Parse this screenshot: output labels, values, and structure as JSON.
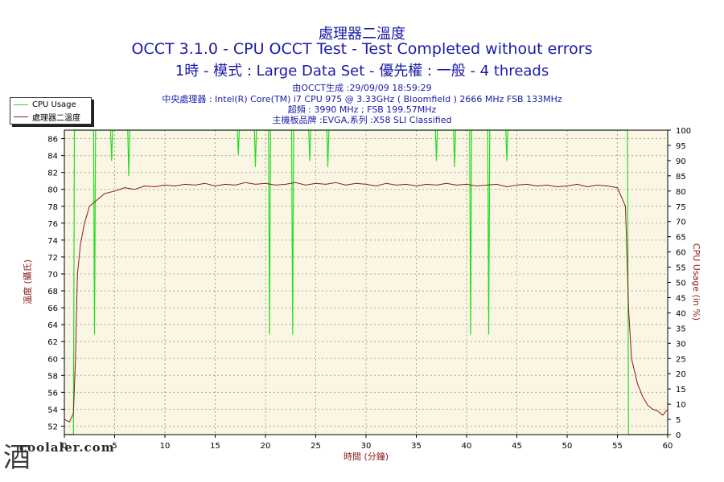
{
  "header": {
    "title_line1": "處理器二溫度",
    "title_line2": "OCCT 3.1.0 - CPU OCCT Test - Test Completed without errors",
    "title_line3": "1時 - 模式 : Large Data Set - 優先權 : 一般 - 4 threads",
    "info_line1": "由OCCT生成 :29/09/09 18:59:29",
    "info_line2": "中央處理器 : Intel(R) Core(TM) i7 CPU 975 @ 3.33GHz ( Bloomfield ) 2666 MHz FSB 133MHz",
    "info_line3": "超頻 : 3990 MHz ; FSB 199.57MHz",
    "info_line4": "主機板品牌 :EVGA,系列 :X58 SLI Classified"
  },
  "legend": {
    "items": [
      {
        "label": "CPU Usage",
        "color": "#22dd22"
      },
      {
        "label": "處理器二溫度",
        "color": "#8b1a1a"
      }
    ]
  },
  "watermark": {
    "glyph": "酒",
    "text": "coolaler.com"
  },
  "colors": {
    "plot_bg": "#fbf6e3",
    "temp": "#8b1a1a",
    "usage": "#22dd22",
    "grid": "#a8a890",
    "axis_text": "#000000",
    "axis_label": "#8b1a1a"
  },
  "chart_data": {
    "type": "line",
    "title": "處理器二溫度",
    "xlabel": "時間 (分鐘)",
    "ylabel_left": "溫度 (攝氏)",
    "ylabel_right": "CPU Usage (in %)",
    "xlim": [
      0,
      60
    ],
    "ylim_left": [
      51,
      87
    ],
    "ylim_right": [
      0,
      100
    ],
    "x_ticks": [
      0,
      5,
      10,
      15,
      20,
      25,
      30,
      35,
      40,
      45,
      50,
      55,
      60
    ],
    "y_ticks_left": [
      52,
      54,
      56,
      58,
      60,
      62,
      64,
      66,
      68,
      70,
      72,
      74,
      76,
      78,
      80,
      82,
      84,
      86
    ],
    "y_ticks_right": [
      0,
      5,
      10,
      15,
      20,
      25,
      30,
      35,
      40,
      45,
      50,
      55,
      60,
      65,
      70,
      75,
      80,
      85,
      90,
      95,
      100
    ],
    "grid": true,
    "legend_position": "top-left outside",
    "series": [
      {
        "name": "處理器二溫度",
        "axis": "left",
        "x": [
          0,
          0.5,
          0.9,
          1.1,
          1.3,
          1.6,
          2.0,
          2.5,
          3.0,
          4,
          5,
          6,
          7,
          8,
          9,
          10,
          11,
          12,
          13,
          14,
          15,
          16,
          17,
          18,
          19,
          20,
          21,
          22,
          23,
          24,
          25,
          26,
          27,
          28,
          29,
          30,
          31,
          32,
          33,
          34,
          35,
          36,
          37,
          38,
          39,
          40,
          41,
          42,
          43,
          44,
          45,
          46,
          47,
          48,
          49,
          50,
          51,
          52,
          53,
          54,
          55,
          55.8,
          56.1,
          56.4,
          57,
          57.5,
          58,
          58.5,
          59,
          59.5,
          60
        ],
        "values": [
          52.8,
          52.5,
          53.5,
          60,
          70,
          73.5,
          76,
          78,
          78.5,
          79.5,
          79.8,
          80.2,
          80,
          80.4,
          80.3,
          80.5,
          80.4,
          80.6,
          80.5,
          80.7,
          80.4,
          80.6,
          80.5,
          80.8,
          80.6,
          80.7,
          80.5,
          80.6,
          80.8,
          80.5,
          80.7,
          80.6,
          80.8,
          80.5,
          80.7,
          80.6,
          80.4,
          80.7,
          80.5,
          80.6,
          80.4,
          80.6,
          80.5,
          80.7,
          80.5,
          80.6,
          80.4,
          80.5,
          80.6,
          80.3,
          80.5,
          80.6,
          80.4,
          80.5,
          80.3,
          80.4,
          80.6,
          80.3,
          80.5,
          80.4,
          80.2,
          78,
          66,
          60,
          57,
          55.5,
          54.5,
          54,
          53.8,
          53.3,
          54
        ]
      },
      {
        "name": "CPU Usage",
        "axis": "right",
        "x": [
          0,
          0.9,
          1.0,
          1.1,
          2.9,
          3.0,
          3.1,
          4.6,
          4.7,
          4.8,
          6.3,
          6.4,
          6.5,
          17.2,
          17.3,
          17.4,
          18.9,
          19.0,
          19.1,
          20.3,
          20.4,
          20.5,
          22.6,
          22.7,
          22.8,
          24.3,
          24.4,
          24.5,
          26.1,
          26.2,
          26.3,
          36.9,
          37.0,
          37.1,
          38.7,
          38.8,
          38.9,
          40.3,
          40.4,
          40.5,
          42.1,
          42.2,
          42.3,
          43.9,
          44.0,
          44.1,
          56.0,
          56.1,
          56.2,
          60
        ],
        "values": [
          0,
          0,
          100,
          100,
          100,
          33,
          100,
          100,
          90,
          100,
          100,
          85,
          100,
          100,
          92,
          100,
          100,
          88,
          100,
          100,
          33,
          100,
          100,
          33,
          100,
          100,
          90,
          100,
          100,
          88,
          100,
          100,
          90,
          100,
          100,
          88,
          100,
          100,
          33,
          100,
          100,
          33,
          100,
          100,
          90,
          100,
          100,
          0,
          0,
          0
        ]
      }
    ]
  }
}
